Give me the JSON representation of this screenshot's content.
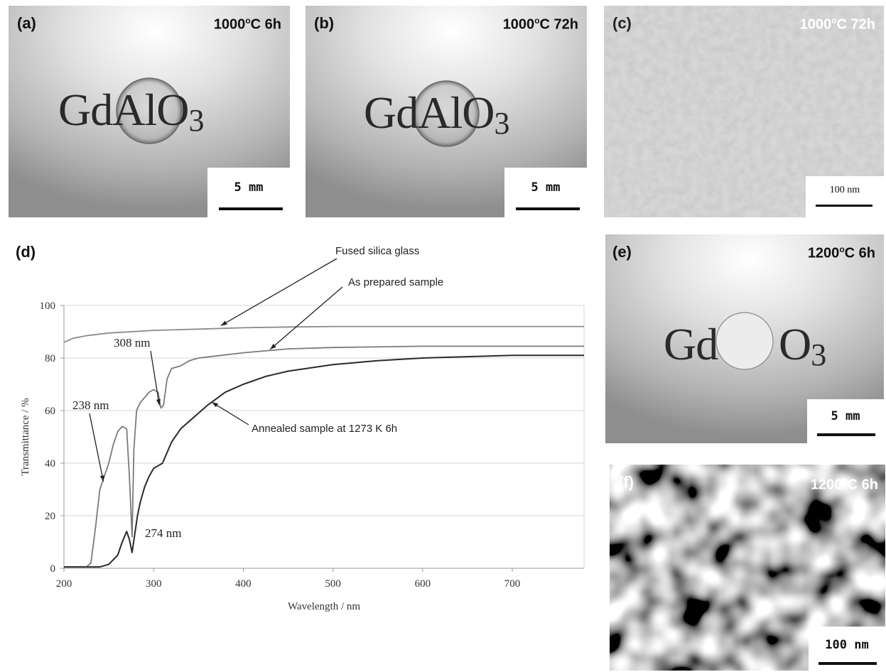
{
  "panels": {
    "a": {
      "label": "(a)",
      "temp": "1000",
      "deg": "o",
      "unit_time": "C 6h",
      "formula_main": "GdAlO",
      "formula_sub": "3",
      "scale": "5 mm"
    },
    "b": {
      "label": "(b)",
      "temp": "1000",
      "deg": "o",
      "unit_time": "C 72h",
      "formula_main": "GdAlO",
      "formula_sub": "3",
      "scale": "5 mm"
    },
    "c": {
      "label": "(c)",
      "temp": "1000",
      "deg": "o",
      "unit_time": "C 72h",
      "scale": "100 nm"
    },
    "e": {
      "label": "(e)",
      "temp": "1200",
      "deg": "o",
      "unit_time": "C 6h",
      "formula_left": "Gd",
      "formula_right": "O",
      "formula_sub": "3",
      "scale": "5 mm"
    },
    "f": {
      "label": "(f)",
      "temp": "1200",
      "deg": "o",
      "unit_time": "C 6h",
      "scale": "100 nm"
    }
  },
  "chart_data": {
    "type": "line",
    "panel_label": "(d)",
    "xlabel": "Wavelength / nm",
    "ylabel": "Transmittance / %",
    "xlim": [
      200,
      780
    ],
    "ylim": [
      0,
      100
    ],
    "xticks": [
      200,
      300,
      400,
      500,
      600,
      700
    ],
    "yticks": [
      0,
      20,
      40,
      60,
      80,
      100
    ],
    "grid": true,
    "series": [
      {
        "name": "Fused silica glass",
        "color": "#8a8a8a",
        "x": [
          200,
          210,
          225,
          250,
          300,
          350,
          400,
          450,
          500,
          600,
          700,
          780
        ],
        "y": [
          86,
          87.5,
          88.5,
          89.5,
          90.5,
          91,
          91.5,
          91.8,
          92,
          92,
          92,
          92
        ]
      },
      {
        "name": "As prepared sample",
        "color": "#7a7a7a",
        "x": [
          200,
          225,
          230,
          235,
          240,
          245,
          250,
          255,
          260,
          265,
          270,
          273,
          276,
          278,
          281,
          285,
          290,
          295,
          300,
          305,
          308,
          311,
          315,
          320,
          330,
          340,
          350,
          375,
          400,
          450,
          500,
          600,
          700,
          780
        ],
        "y": [
          0.5,
          0.5,
          2,
          15,
          30,
          35,
          40,
          47,
          52,
          54,
          53,
          35,
          12,
          45,
          60,
          63,
          65,
          67,
          68,
          67,
          61,
          62,
          72,
          76,
          77,
          79,
          80,
          81,
          82,
          83.5,
          84,
          84.5,
          84.5,
          84.5
        ]
      },
      {
        "name": "Annealed sample at 1273 K 6h",
        "color": "#2a2a2a",
        "x": [
          200,
          230,
          240,
          250,
          260,
          265,
          270,
          273,
          276,
          279,
          282,
          285,
          290,
          295,
          300,
          305,
          310,
          320,
          330,
          340,
          360,
          380,
          400,
          425,
          450,
          500,
          550,
          600,
          650,
          700,
          780
        ],
        "y": [
          0.5,
          0.5,
          0.5,
          1.5,
          5,
          10,
          14,
          11,
          6,
          13,
          20,
          25,
          31,
          35,
          38,
          39,
          40,
          48,
          53,
          56,
          62,
          67,
          70,
          73,
          75,
          77.5,
          79,
          80,
          80.5,
          81,
          81
        ]
      }
    ],
    "annotations": {
      "p238": "238 nm",
      "p274": "274 nm",
      "p308": "308 nm",
      "silica": "Fused silica glass",
      "prepared": "As prepared sample",
      "annealed": "Annealed sample at 1273 K 6h"
    }
  }
}
